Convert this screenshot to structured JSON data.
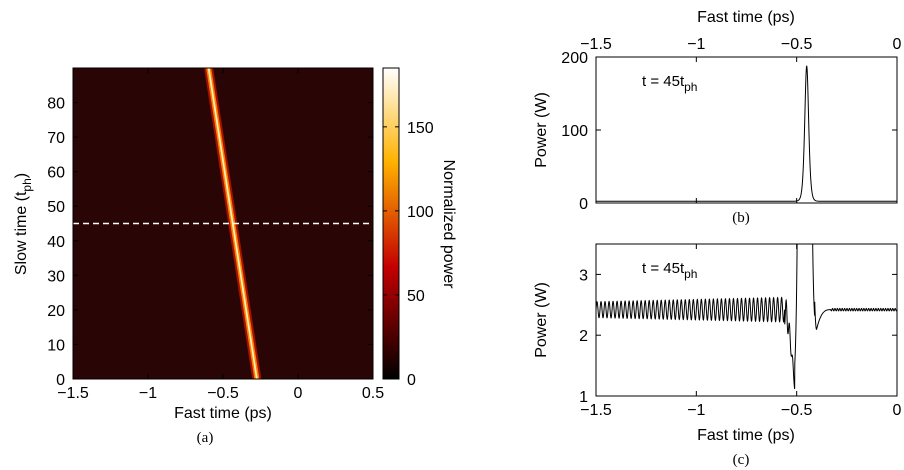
{
  "chart_data": [
    {
      "id": "a",
      "type": "heatmap",
      "caption": "(a)",
      "xlabel": "Fast time (ps)",
      "ylabel": "Slow time (t",
      "ylabel_sub": "ph",
      "ylabel_end": ")",
      "xlim": [
        -1.5,
        0.5
      ],
      "ylim": [
        0,
        90
      ],
      "xticks": [
        -1.5,
        -1,
        -0.5,
        0,
        0.5
      ],
      "xtick_labels": [
        "−1.5",
        "−1",
        "−0.5",
        "0",
        "0.5"
      ],
      "yticks": [
        0,
        10,
        20,
        30,
        40,
        50,
        60,
        70,
        80
      ],
      "ytick_labels": [
        "0",
        "10",
        "20",
        "30",
        "40",
        "50",
        "60",
        "70",
        "80"
      ],
      "background_color": "#2a0505",
      "soliton_track": {
        "x_at_ymin": -0.27,
        "x_at_ymax": -0.6,
        "width_ps": 0.018,
        "peak": 185
      },
      "marker_line": {
        "y": 45,
        "style": "dashed",
        "color": "#ffffff"
      },
      "colorbar": {
        "label": "Normalized power",
        "range": [
          0,
          185
        ],
        "ticks": [
          0,
          50,
          100,
          150
        ],
        "tick_labels": [
          "0",
          "50",
          "100",
          "150"
        ],
        "colormap": "hot"
      }
    },
    {
      "id": "b",
      "type": "line",
      "caption": "(b)",
      "xlabel": "Fast time (ps)",
      "xlabel_position": "top",
      "ylabel": "Power (W)",
      "annotation": "t = 45t",
      "annotation_sub": "ph",
      "xlim": [
        -1.5,
        0
      ],
      "ylim": [
        0,
        200
      ],
      "xticks": [
        -1.5,
        -1,
        -0.5,
        0
      ],
      "xtick_labels": [
        "−1.5",
        "−1",
        "−0.5",
        "0"
      ],
      "yticks": [
        0,
        100,
        200
      ],
      "ytick_labels": [
        "0",
        "100",
        "200"
      ],
      "pulse": {
        "center": -0.45,
        "peak": 188,
        "width_ps": 0.013,
        "background": 2.4
      }
    },
    {
      "id": "c",
      "type": "line",
      "caption": "(c)",
      "xlabel": "Fast time (ps)",
      "ylabel": "Power (W)",
      "annotation": "t = 45t",
      "annotation_sub": "ph",
      "xlim": [
        -1.5,
        0
      ],
      "ylim": [
        1,
        3.5
      ],
      "xticks": [
        -1.5,
        -1,
        -0.5,
        0
      ],
      "xtick_labels": [
        "−1.5",
        "−1",
        "−0.5",
        "0"
      ],
      "yticks": [
        1,
        2,
        3
      ],
      "ytick_labels": [
        "1",
        "2",
        "3"
      ],
      "waveform": {
        "background": 2.42,
        "oscillation_amplitude_start": 0.13,
        "oscillation_amplitude_end": 0.2,
        "oscillation_period_ps": 0.02,
        "oscillation_end": -0.56,
        "dip_min": 1.15,
        "dip_at": -0.51,
        "pulse_center": -0.46,
        "pulse_peak": 188,
        "post_dip_min": 1.95,
        "post_dip_at": -0.41,
        "ripple_from": -0.33,
        "ripple_amplitude": 0.02
      }
    }
  ]
}
